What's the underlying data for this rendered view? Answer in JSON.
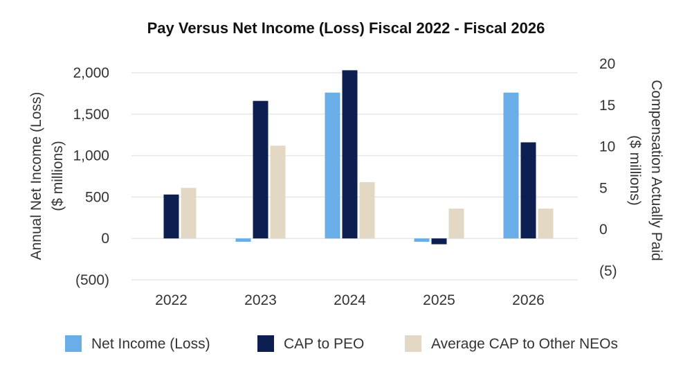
{
  "chart_data": {
    "type": "bar",
    "title": "Pay Versus Net Income (Loss) Fiscal 2022 - Fiscal 2026",
    "categories": [
      "2022",
      "2023",
      "2024",
      "2025",
      "2026"
    ],
    "left_axis": {
      "label_line1": "Annual Net Income (Loss)",
      "label_line2": "($ millions)",
      "ylim": [
        -500,
        2000
      ],
      "ticks": [
        -500,
        0,
        500,
        1000,
        1500,
        2000
      ],
      "tick_labels": [
        "(500)",
        "0",
        "500",
        "1,000",
        "1,500",
        "2,000"
      ]
    },
    "right_axis": {
      "label_line1": "Compensation Actually Paid",
      "label_line2": "($ millions)",
      "ylim": [
        -5,
        20
      ],
      "ticks": [
        -5,
        0,
        5,
        10,
        15,
        20
      ],
      "tick_labels": [
        "(5)",
        "0",
        "5",
        "10",
        "15",
        "20"
      ]
    },
    "series": [
      {
        "name": "Net Income (Loss)",
        "axis": "left",
        "color": "#6aaee8",
        "values": [
          0,
          -40,
          1760,
          -40,
          1760
        ]
      },
      {
        "name": "CAP to PEO",
        "axis": "right",
        "color": "#0c1f50",
        "values": [
          5.3,
          16.6,
          20.3,
          -0.7,
          11.6
        ]
      },
      {
        "name": "Average CAP to Other NEOs",
        "axis": "right",
        "color": "#e2d8c4",
        "values": [
          6.1,
          11.2,
          6.8,
          3.6,
          3.6
        ]
      }
    ],
    "grid": true,
    "legend_position": "bottom"
  }
}
